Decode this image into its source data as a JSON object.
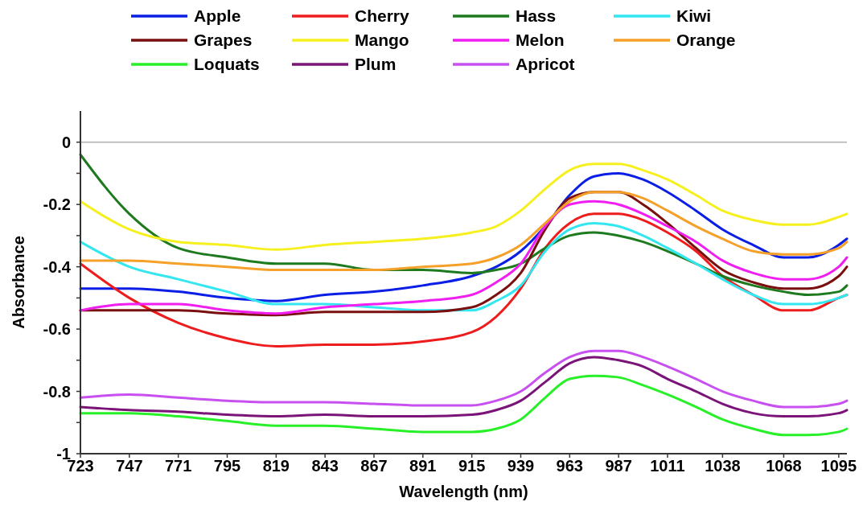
{
  "chart_data": {
    "type": "line",
    "xlabel": "Wavelength (nm)",
    "ylabel": "Absorbance",
    "legend": "top",
    "line_style": "solid",
    "marker": "none",
    "grid": false,
    "x": [
      723,
      747,
      771,
      795,
      819,
      843,
      867,
      891,
      915,
      927,
      939,
      951,
      963,
      975,
      987,
      999,
      1011,
      1025,
      1038,
      1053,
      1068,
      1080,
      1095,
      1099
    ],
    "xlim": [
      723,
      1099
    ],
    "xticks": [
      723,
      747,
      771,
      795,
      819,
      843,
      867,
      891,
      915,
      939,
      963,
      987,
      1011,
      1038,
      1068,
      1095
    ],
    "ylim": [
      -1,
      0.1
    ],
    "yticks": [
      -1,
      {
        "value": -0.9,
        "label": null
      },
      -0.8,
      {
        "value": -0.7,
        "label": null
      },
      -0.6,
      {
        "value": -0.5,
        "label": null
      },
      -0.4,
      {
        "value": -0.3,
        "label": null
      },
      -0.2,
      {
        "value": -0.1,
        "label": null
      },
      0
    ],
    "ref_lines": [
      {
        "axis": "y",
        "value": 0,
        "label": null,
        "color": "#b0b0b0"
      }
    ],
    "series": [
      {
        "name": "Apple",
        "color": "#0a1ee6",
        "values": [
          -0.47,
          -0.47,
          -0.48,
          -0.5,
          -0.51,
          -0.49,
          -0.48,
          -0.46,
          -0.43,
          -0.4,
          -0.35,
          -0.27,
          -0.17,
          -0.11,
          -0.1,
          -0.12,
          -0.16,
          -0.22,
          -0.28,
          -0.33,
          -0.37,
          -0.37,
          -0.33,
          -0.31
        ]
      },
      {
        "name": "Cherry",
        "color": "#ee1c1c",
        "values": [
          -0.39,
          -0.5,
          -0.58,
          -0.63,
          -0.655,
          -0.65,
          -0.65,
          -0.64,
          -0.61,
          -0.56,
          -0.47,
          -0.34,
          -0.26,
          -0.23,
          -0.23,
          -0.25,
          -0.29,
          -0.35,
          -0.43,
          -0.49,
          -0.54,
          -0.54,
          -0.5,
          -0.49
        ]
      },
      {
        "name": "Hass",
        "color": "#1e7a1e",
        "values": [
          -0.04,
          -0.23,
          -0.34,
          -0.37,
          -0.39,
          -0.39,
          -0.41,
          -0.41,
          -0.42,
          -0.41,
          -0.39,
          -0.34,
          -0.3,
          -0.29,
          -0.3,
          -0.32,
          -0.35,
          -0.39,
          -0.43,
          -0.46,
          -0.48,
          -0.49,
          -0.48,
          -0.46
        ]
      },
      {
        "name": "Kiwi",
        "color": "#33e6f0",
        "values": [
          -0.32,
          -0.4,
          -0.44,
          -0.48,
          -0.52,
          -0.52,
          -0.53,
          -0.54,
          -0.54,
          -0.51,
          -0.46,
          -0.35,
          -0.28,
          -0.26,
          -0.27,
          -0.3,
          -0.34,
          -0.39,
          -0.44,
          -0.49,
          -0.52,
          -0.52,
          -0.5,
          -0.49
        ]
      },
      {
        "name": "Grapes",
        "color": "#7a0f0f",
        "values": [
          -0.54,
          -0.54,
          -0.54,
          -0.55,
          -0.555,
          -0.545,
          -0.545,
          -0.545,
          -0.53,
          -0.49,
          -0.42,
          -0.28,
          -0.18,
          -0.16,
          -0.16,
          -0.2,
          -0.26,
          -0.34,
          -0.41,
          -0.45,
          -0.47,
          -0.47,
          -0.43,
          -0.4
        ]
      },
      {
        "name": "Mango",
        "color": "#f5f01e",
        "values": [
          -0.19,
          -0.28,
          -0.32,
          -0.33,
          -0.345,
          -0.33,
          -0.32,
          -0.31,
          -0.29,
          -0.27,
          -0.22,
          -0.15,
          -0.09,
          -0.07,
          -0.07,
          -0.09,
          -0.12,
          -0.17,
          -0.22,
          -0.25,
          -0.265,
          -0.265,
          -0.24,
          -0.23
        ]
      },
      {
        "name": "Melon",
        "color": "#f01ef0",
        "values": [
          -0.54,
          -0.52,
          -0.52,
          -0.54,
          -0.55,
          -0.53,
          -0.52,
          -0.51,
          -0.49,
          -0.45,
          -0.39,
          -0.27,
          -0.2,
          -0.19,
          -0.2,
          -0.23,
          -0.27,
          -0.32,
          -0.38,
          -0.42,
          -0.44,
          -0.44,
          -0.4,
          -0.37
        ]
      },
      {
        "name": "Orange",
        "color": "#f5a028",
        "values": [
          -0.38,
          -0.38,
          -0.39,
          -0.4,
          -0.41,
          -0.41,
          -0.41,
          -0.4,
          -0.39,
          -0.37,
          -0.33,
          -0.26,
          -0.19,
          -0.16,
          -0.16,
          -0.18,
          -0.22,
          -0.27,
          -0.31,
          -0.35,
          -0.36,
          -0.36,
          -0.34,
          -0.32
        ]
      },
      {
        "name": "Loquats",
        "color": "#28f028",
        "values": [
          -0.87,
          -0.87,
          -0.88,
          -0.895,
          -0.91,
          -0.91,
          -0.92,
          -0.93,
          -0.93,
          -0.92,
          -0.89,
          -0.82,
          -0.76,
          -0.75,
          -0.755,
          -0.78,
          -0.81,
          -0.85,
          -0.89,
          -0.92,
          -0.94,
          -0.94,
          -0.93,
          -0.92
        ]
      },
      {
        "name": "Plum",
        "color": "#7a1478",
        "values": [
          -0.85,
          -0.86,
          -0.865,
          -0.875,
          -0.88,
          -0.875,
          -0.88,
          -0.88,
          -0.875,
          -0.86,
          -0.83,
          -0.77,
          -0.71,
          -0.69,
          -0.7,
          -0.72,
          -0.76,
          -0.8,
          -0.84,
          -0.87,
          -0.88,
          -0.88,
          -0.87,
          -0.86
        ]
      },
      {
        "name": "Apricot",
        "color": "#c850f0",
        "values": [
          -0.82,
          -0.81,
          -0.82,
          -0.83,
          -0.835,
          -0.835,
          -0.84,
          -0.845,
          -0.845,
          -0.83,
          -0.8,
          -0.74,
          -0.69,
          -0.67,
          -0.67,
          -0.69,
          -0.72,
          -0.76,
          -0.8,
          -0.83,
          -0.85,
          -0.85,
          -0.84,
          -0.83
        ]
      }
    ]
  }
}
